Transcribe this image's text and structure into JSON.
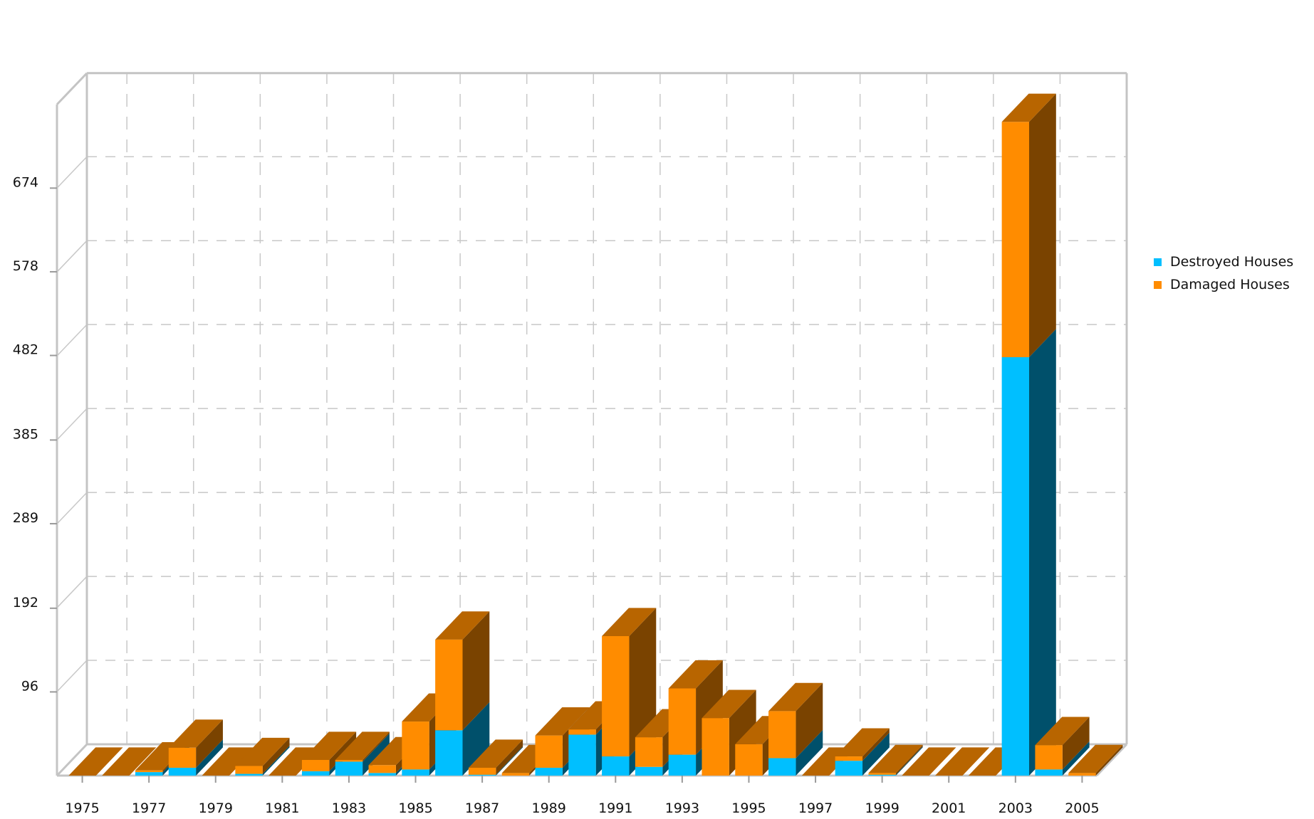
{
  "chart_data": {
    "type": "bar",
    "stacked": true,
    "style": "3d",
    "categories": [
      "1975",
      "1976",
      "1977",
      "1978",
      "1979",
      "1980",
      "1981",
      "1982",
      "1983",
      "1984",
      "1985",
      "1986",
      "1987",
      "1988",
      "1989",
      "1990",
      "1991",
      "1992",
      "1993",
      "1994",
      "1995",
      "1996",
      "1997",
      "1998",
      "1999",
      "2000",
      "2001",
      "2002",
      "2003",
      "2004",
      "2005"
    ],
    "x_tick_labels": [
      "1975",
      "1977",
      "1979",
      "1981",
      "1983",
      "1985",
      "1987",
      "1989",
      "1991",
      "1993",
      "1995",
      "1997",
      "1999",
      "2001",
      "2003",
      "2005"
    ],
    "y_tick_labels": [
      "96",
      "192",
      "289",
      "385",
      "482",
      "578",
      "674"
    ],
    "ylim": [
      0,
      770
    ],
    "grid": true,
    "legend_position": "right",
    "series": [
      {
        "name": "Destroyed Houses",
        "color": "#00bfff",
        "values": [
          0,
          0,
          4,
          9,
          0,
          2,
          0,
          5,
          16,
          3,
          7,
          52,
          1,
          0,
          9,
          47,
          22,
          10,
          24,
          0,
          0,
          20,
          0,
          17,
          1,
          0,
          0,
          0,
          480,
          7,
          0
        ]
      },
      {
        "name": "Damaged Houses",
        "color": "#ff8c00",
        "values": [
          0,
          0,
          2,
          23,
          0,
          9,
          0,
          13,
          2,
          9,
          55,
          104,
          8,
          3,
          37,
          6,
          138,
          34,
          76,
          66,
          36,
          54,
          0,
          5,
          2,
          0,
          0,
          0,
          270,
          28,
          3
        ]
      }
    ]
  }
}
